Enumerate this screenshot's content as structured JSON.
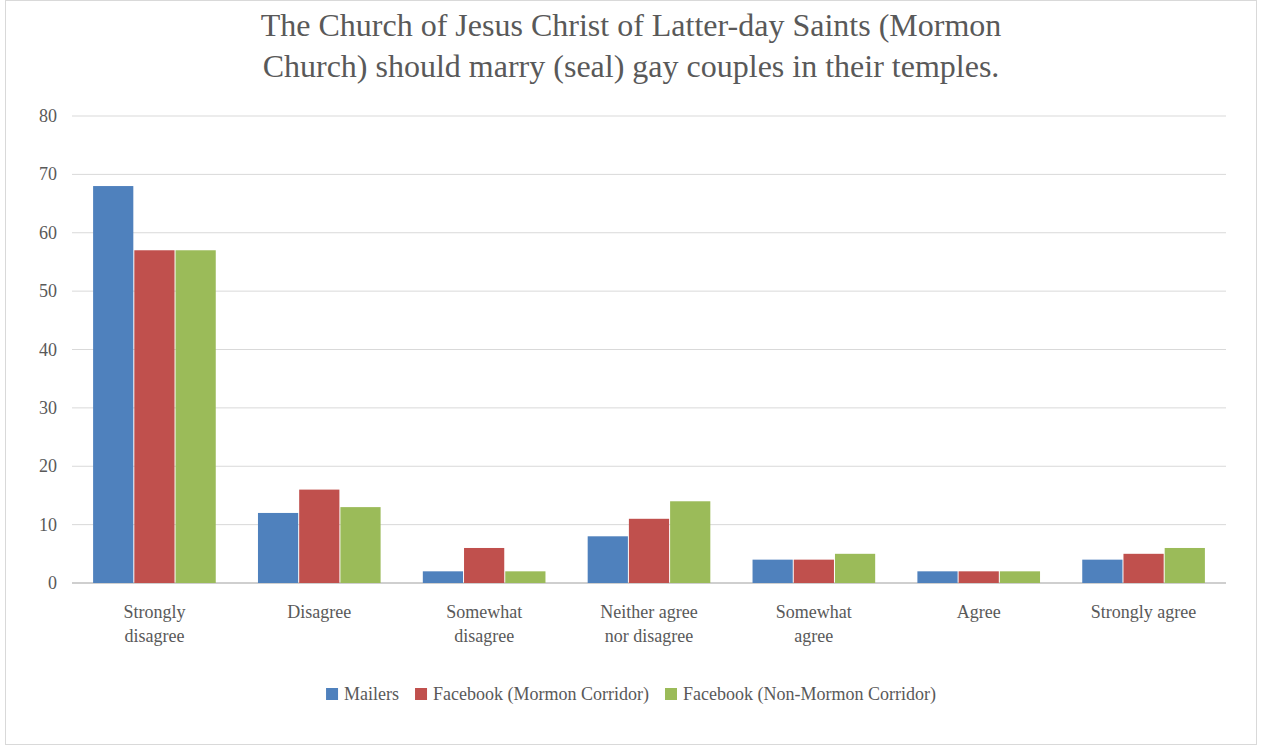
{
  "chart_data": {
    "type": "bar",
    "title": "The Church of Jesus Christ of Latter-day Saints (Mormon Church) should marry (seal) gay couples in their temples.",
    "categories": [
      "Strongly disagree",
      "Disagree",
      "Somewhat disagree",
      "Neither agree nor disagree",
      "Somewhat agree",
      "Agree",
      "Strongly agree"
    ],
    "series": [
      {
        "name": "Mailers",
        "color": "#4f81bd",
        "values": [
          68,
          12,
          2,
          8,
          4,
          2,
          4
        ]
      },
      {
        "name": "Facebook (Mormon Corridor)",
        "color": "#c0504d",
        "values": [
          57,
          16,
          6,
          11,
          4,
          2,
          5
        ]
      },
      {
        "name": "Facebook (Non-Mormon Corridor)",
        "color": "#9bbb59",
        "values": [
          57,
          13,
          2,
          14,
          5,
          2,
          6
        ]
      }
    ],
    "ylim": [
      0,
      80
    ],
    "yticks": [
      0,
      10,
      20,
      30,
      40,
      50,
      60,
      70,
      80
    ],
    "grid": true,
    "legend": "bottom"
  }
}
